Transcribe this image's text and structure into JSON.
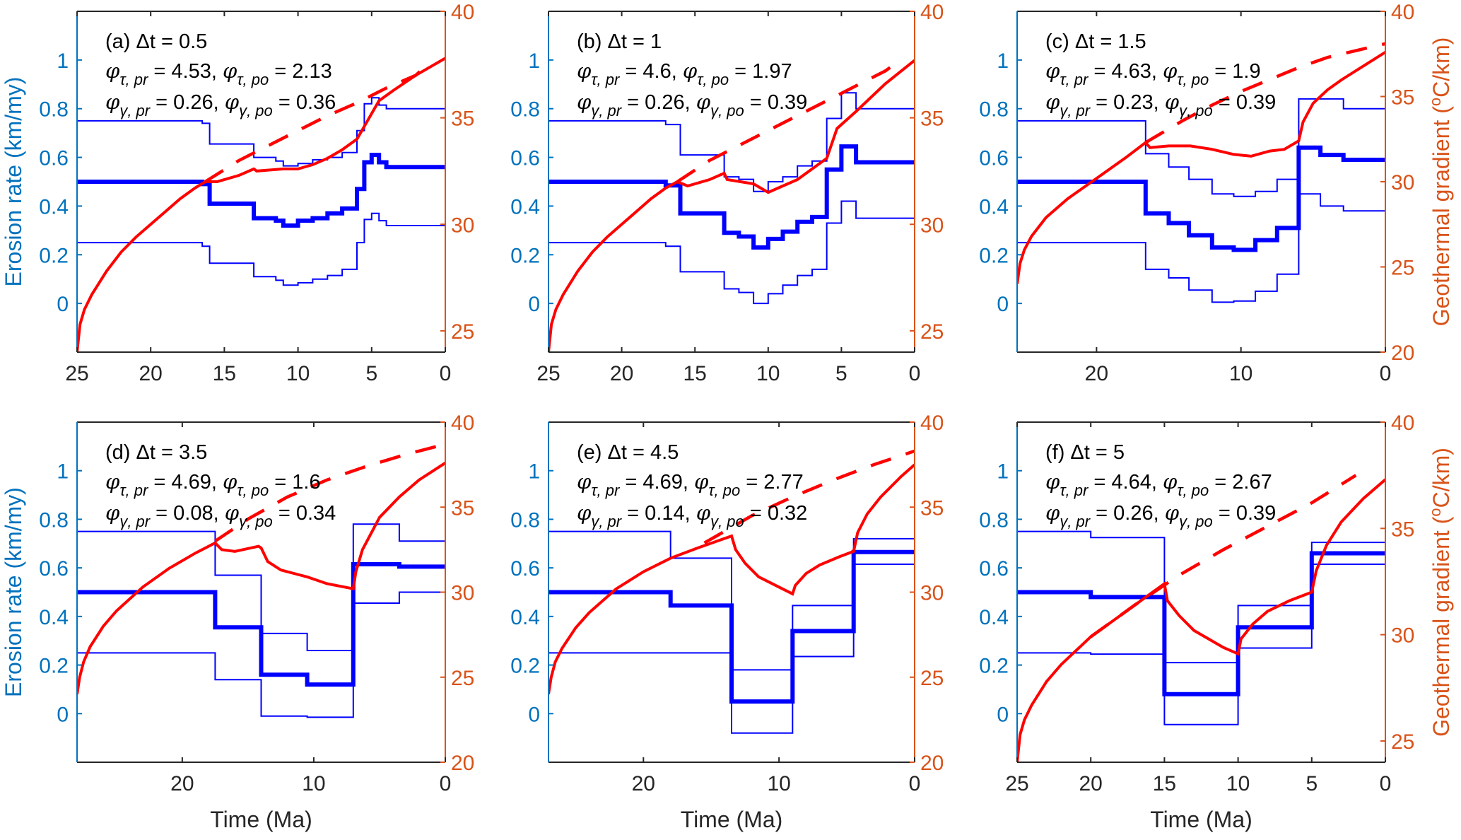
{
  "labels": {
    "xlabel": "Time (Ma)",
    "ylabel_left": "Erosion rate (km/my)",
    "ylabel_right_pre": "Geothermal gradient (",
    "ylabel_right_sup": "o",
    "ylabel_right_post": "C/km)",
    "phi": "φ",
    "sub_tau_pr": "τ, pr",
    "sub_tau_po": "τ, po",
    "sub_gamma_pr": "γ, pr",
    "sub_gamma_po": "γ, po"
  },
  "colors": {
    "left_axis": "#0072BD",
    "right_axis": "#D95319",
    "erosion": "#0000FF",
    "gradient": "#FF0000",
    "frame": "#262626"
  },
  "chart_data": [
    {
      "panel": "a",
      "type": "line",
      "title": "(a) Δt = 0.5",
      "phi_tau_pr": "4.53",
      "phi_tau_po": "2.13",
      "phi_gamma_pr": "0.26",
      "phi_gamma_po": "0.36",
      "xlim": [
        25,
        0
      ],
      "xticks": [
        "25",
        "20",
        "15",
        "10",
        "5",
        "0"
      ],
      "ylim_left": [
        -0.2,
        1.2
      ],
      "yticks_left": [
        "0",
        "0.2",
        "0.4",
        "0.6",
        "0.8",
        "1"
      ],
      "ylim_right": [
        24,
        40
      ],
      "yticks_right": [
        "25",
        "30",
        "35",
        "40"
      ],
      "show_ylabel_left": true,
      "show_ylabel_right": false,
      "show_xlabel": false,
      "step_edges": [
        25,
        16.5,
        16,
        13,
        11.5,
        11,
        10,
        9,
        8,
        7,
        6,
        5.5,
        5,
        4.5,
        4,
        0
      ],
      "erosion_mean": [
        0.5,
        0.49,
        0.41,
        0.35,
        0.34,
        0.32,
        0.34,
        0.35,
        0.37,
        0.39,
        0.47,
        0.58,
        0.61,
        0.58,
        0.56
      ],
      "erosion_upper": [
        0.75,
        0.74,
        0.655,
        0.6,
        0.585,
        0.565,
        0.575,
        0.59,
        0.6,
        0.62,
        0.71,
        0.82,
        0.845,
        0.815,
        0.8
      ],
      "erosion_lower": [
        0.25,
        0.235,
        0.165,
        0.11,
        0.095,
        0.075,
        0.085,
        0.1,
        0.115,
        0.14,
        0.25,
        0.345,
        0.37,
        0.34,
        0.32
      ],
      "gradient": [
        [
          25,
          24
        ],
        [
          24.8,
          25.3
        ],
        [
          24.5,
          26
        ],
        [
          24,
          26.7
        ],
        [
          23,
          27.8
        ],
        [
          22,
          28.7
        ],
        [
          21,
          29.4
        ],
        [
          20,
          30
        ],
        [
          19,
          30.6
        ],
        [
          18,
          31.2
        ],
        [
          17,
          31.7
        ],
        [
          16.3,
          32
        ],
        [
          15.5,
          32
        ],
        [
          14,
          32.3
        ],
        [
          13,
          32.6
        ],
        [
          12.8,
          32.5
        ],
        [
          11,
          32.6
        ],
        [
          10,
          32.6
        ],
        [
          9,
          32.8
        ],
        [
          8,
          33.1
        ],
        [
          7,
          33.5
        ],
        [
          6,
          34
        ],
        [
          5.5,
          34.6
        ],
        [
          5,
          35.2
        ],
        [
          4.5,
          35.8
        ],
        [
          3.5,
          36.3
        ],
        [
          2,
          37
        ],
        [
          0,
          37.8
        ]
      ],
      "gradient_dashed": [
        [
          16.3,
          32
        ],
        [
          14,
          33
        ],
        [
          12,
          33.7
        ],
        [
          10,
          34.4
        ],
        [
          8,
          35.1
        ],
        [
          6,
          35.7
        ],
        [
          4,
          36.4
        ],
        [
          2,
          37
        ],
        [
          1.2,
          37.5
        ]
      ]
    },
    {
      "panel": "b",
      "type": "line",
      "title": "(b) Δt = 1",
      "phi_tau_pr": "4.6",
      "phi_tau_po": "1.97",
      "phi_gamma_pr": "0.26",
      "phi_gamma_po": "0.39",
      "xlim": [
        25,
        0
      ],
      "xticks": [
        "25",
        "20",
        "15",
        "10",
        "5",
        "0"
      ],
      "ylim_left": [
        -0.2,
        1.2
      ],
      "yticks_left": [
        "0",
        "0.2",
        "0.4",
        "0.6",
        "0.8",
        "1"
      ],
      "ylim_right": [
        24,
        40
      ],
      "yticks_right": [
        "25",
        "30",
        "35",
        "40"
      ],
      "show_ylabel_left": false,
      "show_ylabel_right": false,
      "show_xlabel": false,
      "step_edges": [
        25,
        17,
        16,
        13,
        12,
        11,
        10,
        9,
        8,
        7,
        6,
        5,
        4,
        0
      ],
      "erosion_mean": [
        0.5,
        0.485,
        0.37,
        0.29,
        0.275,
        0.23,
        0.265,
        0.295,
        0.335,
        0.355,
        0.55,
        0.645,
        0.58
      ],
      "erosion_upper": [
        0.75,
        0.735,
        0.61,
        0.52,
        0.51,
        0.46,
        0.5,
        0.52,
        0.565,
        0.585,
        0.76,
        0.865,
        0.8
      ],
      "erosion_lower": [
        0.25,
        0.235,
        0.13,
        0.06,
        0.045,
        0,
        0.04,
        0.075,
        0.115,
        0.14,
        0.33,
        0.42,
        0.35
      ],
      "gradient": [
        [
          25,
          24
        ],
        [
          24.8,
          25.3
        ],
        [
          24.5,
          26
        ],
        [
          24,
          26.7
        ],
        [
          23,
          27.8
        ],
        [
          22,
          28.7
        ],
        [
          21,
          29.4
        ],
        [
          20,
          30
        ],
        [
          19,
          30.6
        ],
        [
          18,
          31.2
        ],
        [
          17,
          31.7
        ],
        [
          16.2,
          32
        ],
        [
          15.5,
          31.8
        ],
        [
          14,
          32.1
        ],
        [
          13,
          32.4
        ],
        [
          12.8,
          32.1
        ],
        [
          11,
          31.9
        ],
        [
          10,
          31.5
        ],
        [
          9,
          31.8
        ],
        [
          8,
          32.1
        ],
        [
          7,
          32.6
        ],
        [
          6,
          33.1
        ],
        [
          5.3,
          34.5
        ],
        [
          4,
          35.3
        ],
        [
          2,
          36.6
        ],
        [
          0,
          37.7
        ]
      ],
      "gradient_dashed": [
        [
          16.2,
          32
        ],
        [
          14,
          33
        ],
        [
          12,
          33.7
        ],
        [
          10,
          34.4
        ],
        [
          8,
          35.1
        ],
        [
          6,
          35.8
        ],
        [
          4,
          36.5
        ],
        [
          2,
          37.2
        ],
        [
          1.2,
          37.6
        ]
      ]
    },
    {
      "panel": "c",
      "type": "line",
      "title": "(c) Δt = 1.5",
      "phi_tau_pr": "4.63",
      "phi_tau_po": "1.9",
      "phi_gamma_pr": "0.23",
      "phi_gamma_po": "0.39",
      "xlim": [
        25.5,
        0
      ],
      "xticks": [
        "20",
        "10",
        "0"
      ],
      "ylim_left": [
        -0.2,
        1.2
      ],
      "yticks_left": [
        "0",
        "0.2",
        "0.4",
        "0.6",
        "0.8",
        "1"
      ],
      "ylim_right": [
        20,
        40
      ],
      "yticks_right": [
        "20",
        "25",
        "30",
        "35",
        "40"
      ],
      "show_ylabel_left": false,
      "show_ylabel_right": true,
      "show_xlabel": false,
      "step_edges": [
        25.5,
        16.6,
        15,
        13.6,
        12,
        10.5,
        9,
        7.5,
        6,
        4.5,
        2.9,
        0
      ],
      "erosion_mean": [
        0.5,
        0.37,
        0.33,
        0.28,
        0.23,
        0.22,
        0.26,
        0.31,
        0.64,
        0.61,
        0.59
      ],
      "erosion_upper": [
        0.75,
        0.615,
        0.56,
        0.51,
        0.45,
        0.44,
        0.46,
        0.51,
        0.84,
        0.84,
        0.8
      ],
      "erosion_lower": [
        0.25,
        0.14,
        0.105,
        0.055,
        0.005,
        0.01,
        0.05,
        0.12,
        0.45,
        0.4,
        0.38
      ],
      "gradient": [
        [
          25.5,
          24
        ],
        [
          25.3,
          25.2
        ],
        [
          25,
          26
        ],
        [
          24.5,
          26.8
        ],
        [
          23.5,
          27.9
        ],
        [
          22,
          29
        ],
        [
          20,
          30.2
        ],
        [
          18,
          31.4
        ],
        [
          16.6,
          32.3
        ],
        [
          16.3,
          32
        ],
        [
          15,
          32.1
        ],
        [
          13.5,
          32.1
        ],
        [
          12,
          31.9
        ],
        [
          10.5,
          31.6
        ],
        [
          9.3,
          31.5
        ],
        [
          8,
          31.8
        ],
        [
          7,
          31.9
        ],
        [
          6,
          32.4
        ],
        [
          5.7,
          33.5
        ],
        [
          5,
          34.6
        ],
        [
          4,
          35.4
        ],
        [
          3,
          36
        ],
        [
          1.5,
          36.8
        ],
        [
          0,
          37.6
        ]
      ],
      "gradient_dashed": [
        [
          16.6,
          32.3
        ],
        [
          14,
          33.6
        ],
        [
          12,
          34.5
        ],
        [
          10,
          35.3
        ],
        [
          8,
          36
        ],
        [
          6,
          36.7
        ],
        [
          4,
          37.3
        ],
        [
          2,
          37.7
        ],
        [
          0,
          38.1
        ]
      ]
    },
    {
      "panel": "d",
      "type": "line",
      "title": "(d) Δt = 3.5",
      "phi_tau_pr": "4.69",
      "phi_tau_po": "1.6",
      "phi_gamma_pr": "0.08",
      "phi_gamma_po": "0.34",
      "xlim": [
        28,
        0
      ],
      "xticks": [
        "20",
        "10",
        "0"
      ],
      "ylim_left": [
        -0.2,
        1.2
      ],
      "yticks_left": [
        "0",
        "0.2",
        "0.4",
        "0.6",
        "0.8",
        "1"
      ],
      "ylim_right": [
        20,
        40
      ],
      "yticks_right": [
        "20",
        "25",
        "30",
        "35",
        "40"
      ],
      "show_ylabel_left": true,
      "show_ylabel_right": false,
      "show_xlabel": true,
      "step_edges": [
        28,
        17.5,
        14,
        10.5,
        7,
        3.5,
        0
      ],
      "erosion_mean": [
        0.5,
        0.355,
        0.16,
        0.12,
        0.615,
        0.605
      ],
      "erosion_upper": [
        0.75,
        0.57,
        0.33,
        0.26,
        0.78,
        0.71
      ],
      "erosion_lower": [
        0.25,
        0.14,
        -0.01,
        -0.015,
        0.455,
        0.5
      ],
      "gradient": [
        [
          28,
          24
        ],
        [
          27.8,
          25
        ],
        [
          27.5,
          25.9
        ],
        [
          27,
          26.8
        ],
        [
          26,
          28
        ],
        [
          25,
          28.9
        ],
        [
          23,
          30.3
        ],
        [
          21,
          31.4
        ],
        [
          19,
          32.3
        ],
        [
          17.5,
          32.9
        ],
        [
          17,
          32.5
        ],
        [
          16,
          32.4
        ],
        [
          14.2,
          32.7
        ],
        [
          14,
          32.6
        ],
        [
          13.5,
          31.8
        ],
        [
          12.5,
          31.3
        ],
        [
          11,
          31
        ],
        [
          10.5,
          30.9
        ],
        [
          9,
          30.5
        ],
        [
          7,
          30.2
        ],
        [
          6.8,
          31.2
        ],
        [
          6.3,
          32.5
        ],
        [
          5,
          34.4
        ],
        [
          3.5,
          35.6
        ],
        [
          2,
          36.6
        ],
        [
          0,
          37.6
        ]
      ],
      "gradient_dashed": [
        [
          17.5,
          33
        ],
        [
          15,
          34.3
        ],
        [
          12,
          35.6
        ],
        [
          9,
          36.6
        ],
        [
          6,
          37.4
        ],
        [
          3,
          38.1
        ],
        [
          0,
          38.7
        ]
      ]
    },
    {
      "panel": "e",
      "type": "line",
      "title": "(e) Δt = 4.5",
      "phi_tau_pr": "4.69",
      "phi_tau_po": "2.77",
      "phi_gamma_pr": "0.14",
      "phi_gamma_po": "0.32",
      "xlim": [
        27,
        0
      ],
      "xticks": [
        "20",
        "10",
        "0"
      ],
      "ylim_left": [
        -0.2,
        1.2
      ],
      "yticks_left": [
        "0",
        "0.2",
        "0.4",
        "0.6",
        "0.8",
        "1"
      ],
      "ylim_right": [
        20,
        40
      ],
      "yticks_right": [
        "20",
        "25",
        "30",
        "35",
        "40"
      ],
      "show_ylabel_left": false,
      "show_ylabel_right": false,
      "show_xlabel": true,
      "step_edges": [
        27,
        18,
        13.5,
        9,
        4.5,
        0
      ],
      "erosion_mean": [
        0.5,
        0.445,
        0.05,
        0.34,
        0.665
      ],
      "erosion_upper": [
        0.75,
        0.64,
        0.18,
        0.445,
        0.72
      ],
      "erosion_lower": [
        0.25,
        0.25,
        -0.08,
        0.235,
        0.615
      ],
      "gradient": [
        [
          27,
          24
        ],
        [
          26.8,
          25
        ],
        [
          26.5,
          25.9
        ],
        [
          26,
          26.7
        ],
        [
          25,
          27.9
        ],
        [
          24,
          28.8
        ],
        [
          22,
          30.2
        ],
        [
          20,
          31.2
        ],
        [
          18,
          32
        ],
        [
          16,
          32.6
        ],
        [
          13.5,
          33.3
        ],
        [
          13.2,
          32.5
        ],
        [
          12.5,
          31.7
        ],
        [
          11.5,
          30.9
        ],
        [
          10,
          30.3
        ],
        [
          9,
          29.9
        ],
        [
          8.8,
          30.4
        ],
        [
          8,
          31.1
        ],
        [
          7,
          31.6
        ],
        [
          5.5,
          32.1
        ],
        [
          4.5,
          32.4
        ],
        [
          4.2,
          33.5
        ],
        [
          3.5,
          34.6
        ],
        [
          2.5,
          35.6
        ],
        [
          1,
          36.8
        ],
        [
          0,
          37.5
        ]
      ],
      "gradient_dashed": [
        [
          15.5,
          32.9
        ],
        [
          12,
          34.5
        ],
        [
          9,
          35.6
        ],
        [
          6,
          36.6
        ],
        [
          3,
          37.5
        ],
        [
          0,
          38.3
        ]
      ]
    },
    {
      "panel": "f",
      "type": "line",
      "title": "(f) Δt = 5",
      "phi_tau_pr": "4.64",
      "phi_tau_po": "2.67",
      "phi_gamma_pr": "0.26",
      "phi_gamma_po": "0.39",
      "xlim": [
        25,
        0
      ],
      "xticks": [
        "25",
        "20",
        "15",
        "10",
        "5",
        "0"
      ],
      "ylim_left": [
        -0.2,
        1.2
      ],
      "yticks_left": [
        "0",
        "0.2",
        "0.4",
        "0.6",
        "0.8",
        "1"
      ],
      "ylim_right": [
        24,
        40
      ],
      "yticks_right": [
        "25",
        "30",
        "35",
        "40"
      ],
      "show_ylabel_left": false,
      "show_ylabel_right": true,
      "show_xlabel": true,
      "step_edges": [
        25,
        20,
        15,
        10,
        5,
        0
      ],
      "erosion_mean": [
        0.5,
        0.48,
        0.08,
        0.355,
        0.66
      ],
      "erosion_upper": [
        0.75,
        0.725,
        0.21,
        0.445,
        0.705
      ],
      "erosion_lower": [
        0.25,
        0.245,
        -0.045,
        0.27,
        0.615
      ],
      "gradient": [
        [
          25,
          24
        ],
        [
          24.8,
          25.3
        ],
        [
          24.5,
          26
        ],
        [
          24,
          26.7
        ],
        [
          23,
          27.8
        ],
        [
          22,
          28.6
        ],
        [
          20,
          29.9
        ],
        [
          18,
          30.9
        ],
        [
          16,
          31.9
        ],
        [
          15,
          32.4
        ],
        [
          14.8,
          31.6
        ],
        [
          14,
          30.9
        ],
        [
          13,
          30.2
        ],
        [
          12,
          29.8
        ],
        [
          11,
          29.4
        ],
        [
          10,
          29.1
        ],
        [
          9.8,
          29.8
        ],
        [
          9,
          30.5
        ],
        [
          8,
          31.1
        ],
        [
          6.5,
          31.6
        ],
        [
          5,
          32
        ],
        [
          4.7,
          33
        ],
        [
          4,
          34.2
        ],
        [
          3,
          35.3
        ],
        [
          1.5,
          36.4
        ],
        [
          0,
          37.3
        ]
      ],
      "gradient_dashed": [
        [
          20,
          29.9
        ],
        [
          17,
          31.4
        ],
        [
          14,
          32.8
        ],
        [
          11,
          34
        ],
        [
          8,
          35.1
        ],
        [
          5,
          36.2
        ],
        [
          2,
          37.5
        ]
      ]
    }
  ]
}
